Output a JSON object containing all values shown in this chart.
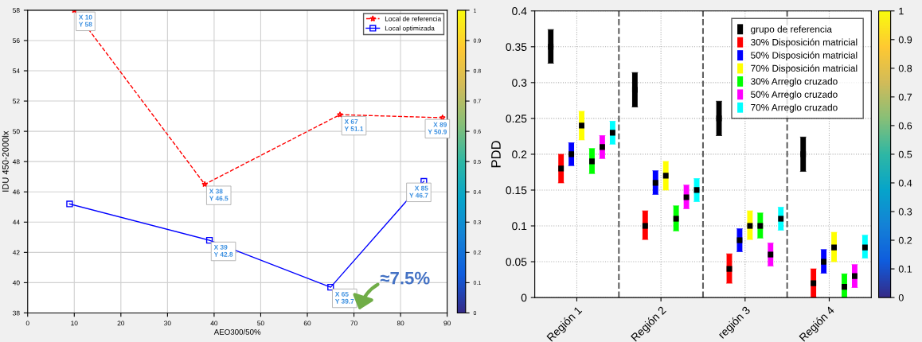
{
  "chart_data": [
    {
      "type": "line",
      "xlabel": "AEO300/50%",
      "ylabel": "IDU 450-2000lx",
      "xlim": [
        0,
        90
      ],
      "xticks": [
        0,
        10,
        20,
        30,
        40,
        50,
        60,
        70,
        80,
        90
      ],
      "ylim": [
        38,
        58
      ],
      "yticks": [
        38,
        40,
        42,
        44,
        46,
        48,
        50,
        52,
        54,
        56,
        58
      ],
      "grid": true,
      "legend": "top right",
      "clim": [
        0,
        1
      ],
      "cticks": [
        0,
        0.1,
        0.2,
        0.3,
        0.4,
        0.5,
        0.6,
        0.7,
        0.8,
        0.9,
        1
      ],
      "series": [
        {
          "name": "Local de referencia",
          "color": "#ff0000",
          "marker": "star",
          "line_style": "dashed",
          "x": [
            10,
            38,
            67,
            89
          ],
          "values": [
            58,
            46.5,
            51.1,
            50.9
          ]
        },
        {
          "name": "Local optimizada",
          "color": "#0000ff",
          "marker": "square",
          "line_style": "solid",
          "x": [
            9,
            39,
            65,
            85
          ],
          "values": [
            45.2,
            42.8,
            39.7,
            46.7
          ]
        }
      ],
      "annotations": [
        {
          "text": "X 10\nY 58",
          "x": 10,
          "y": 58
        },
        {
          "text": "X 38\nY 46.5",
          "x": 38,
          "y": 46.5
        },
        {
          "text": "X 67\nY 51.1",
          "x": 67,
          "y": 51.1
        },
        {
          "text": "X 89\nY 50.9",
          "x": 89,
          "y": 50.9
        },
        {
          "text": "X 39\nY 42.8",
          "x": 39,
          "y": 42.8
        },
        {
          "text": "X 65\nY 39.7",
          "x": 65,
          "y": 39.7
        },
        {
          "text": "X 85\nY 46.7",
          "x": 85,
          "y": 46.7
        },
        "≈7.5%"
      ]
    },
    {
      "type": "box",
      "ylabel": "PDD",
      "categories": [
        "Región 1",
        "Región 2",
        "región 3",
        "Región 4"
      ],
      "ylim": [
        0,
        0.4
      ],
      "yticks": [
        0,
        0.05,
        0.1,
        0.15,
        0.2,
        0.25,
        0.3,
        0.35,
        0.4
      ],
      "grid": true,
      "legend": "top right",
      "clim": [
        0,
        1
      ],
      "cticks": [
        0,
        0.1,
        0.2,
        0.3,
        0.4,
        0.5,
        0.6,
        0.7,
        0.8,
        0.9,
        1
      ],
      "series": [
        {
          "name": "grupo de referencia",
          "color": "#000000",
          "boxes": [
            {
              "low": 0.327,
              "q1": 0.327,
              "median": 0.35,
              "q3": 0.374,
              "high": 0.374
            },
            {
              "low": 0.266,
              "q1": 0.266,
              "median": 0.29,
              "q3": 0.314,
              "high": 0.314
            },
            {
              "low": 0.226,
              "q1": 0.226,
              "median": 0.25,
              "q3": 0.274,
              "high": 0.274
            },
            {
              "low": 0.176,
              "q1": 0.176,
              "median": 0.2,
              "q3": 0.224,
              "high": 0.224
            }
          ]
        },
        {
          "name": "30% Disposición matricial",
          "color": "#ff0000",
          "boxes": [
            {
              "low": 0.16,
              "q1": 0.16,
              "median": 0.18,
              "q3": 0.2,
              "high": 0.2
            },
            {
              "low": 0.081,
              "q1": 0.081,
              "median": 0.1,
              "q3": 0.121,
              "high": 0.121
            },
            {
              "low": 0.02,
              "q1": 0.02,
              "median": 0.04,
              "q3": 0.061,
              "high": 0.061
            },
            {
              "low": 0,
              "q1": 0,
              "median": 0.02,
              "q3": 0.04,
              "high": 0.04
            }
          ]
        },
        {
          "name": "50% Disposición matricial",
          "color": "#0000ff",
          "boxes": [
            {
              "low": 0.184,
              "q1": 0.184,
              "median": 0.2,
              "q3": 0.216,
              "high": 0.216
            },
            {
              "low": 0.144,
              "q1": 0.144,
              "median": 0.16,
              "q3": 0.177,
              "high": 0.177
            },
            {
              "low": 0.064,
              "q1": 0.064,
              "median": 0.08,
              "q3": 0.096,
              "high": 0.096
            },
            {
              "low": 0.034,
              "q1": 0.034,
              "median": 0.05,
              "q3": 0.067,
              "high": 0.067
            }
          ]
        },
        {
          "name": "70% Disposición matricial",
          "color": "#ffff00",
          "boxes": [
            {
              "low": 0.22,
              "q1": 0.22,
              "median": 0.24,
              "q3": 0.26,
              "high": 0.26
            },
            {
              "low": 0.15,
              "q1": 0.15,
              "median": 0.17,
              "q3": 0.19,
              "high": 0.19
            },
            {
              "low": 0.081,
              "q1": 0.081,
              "median": 0.1,
              "q3": 0.121,
              "high": 0.121
            },
            {
              "low": 0.05,
              "q1": 0.05,
              "median": 0.07,
              "q3": 0.091,
              "high": 0.091
            }
          ]
        },
        {
          "name": "30% Arreglo cruzado",
          "color": "#00ff00",
          "boxes": [
            {
              "low": 0.173,
              "q1": 0.173,
              "median": 0.19,
              "q3": 0.208,
              "high": 0.208
            },
            {
              "low": 0.093,
              "q1": 0.093,
              "median": 0.11,
              "q3": 0.128,
              "high": 0.128
            },
            {
              "low": 0.083,
              "q1": 0.083,
              "median": 0.1,
              "q3": 0.118,
              "high": 0.118
            },
            {
              "low": 0,
              "q1": 0,
              "median": 0.015,
              "q3": 0.033,
              "high": 0.033
            }
          ]
        },
        {
          "name": "50% Arreglo cruzado",
          "color": "#ff00ff",
          "boxes": [
            {
              "low": 0.194,
              "q1": 0.194,
              "median": 0.21,
              "q3": 0.226,
              "high": 0.226
            },
            {
              "low": 0.124,
              "q1": 0.124,
              "median": 0.14,
              "q3": 0.157,
              "high": 0.157
            },
            {
              "low": 0.044,
              "q1": 0.044,
              "median": 0.06,
              "q3": 0.076,
              "high": 0.076
            },
            {
              "low": 0.014,
              "q1": 0.014,
              "median": 0.03,
              "q3": 0.046,
              "high": 0.046
            }
          ]
        },
        {
          "name": "70% Arreglo cruzado",
          "color": "#00ffff",
          "boxes": [
            {
              "low": 0.214,
              "q1": 0.214,
              "median": 0.23,
              "q3": 0.246,
              "high": 0.246
            },
            {
              "low": 0.134,
              "q1": 0.134,
              "median": 0.15,
              "q3": 0.166,
              "high": 0.166
            },
            {
              "low": 0.094,
              "q1": 0.094,
              "median": 0.11,
              "q3": 0.126,
              "high": 0.126
            },
            {
              "low": 0.055,
              "q1": 0.055,
              "median": 0.07,
              "q3": 0.087,
              "high": 0.087
            }
          ]
        }
      ]
    }
  ]
}
